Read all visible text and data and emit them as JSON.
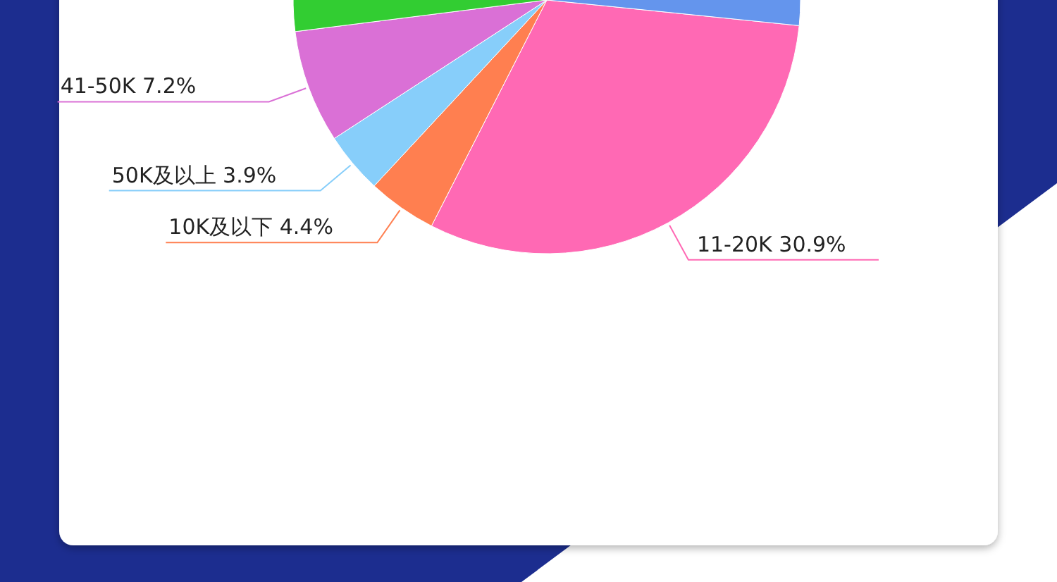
{
  "chart_data": {
    "type": "pie",
    "categories": [
      "11-20K",
      "10K及以下",
      "50K及以上",
      "41-50K",
      null,
      null
    ],
    "values": [
      30.9,
      4.4,
      3.9,
      7.2,
      26.8,
      26.8
    ],
    "colors": [
      "#ff69b4",
      "#ff7f50",
      "#87cefa",
      "#da70d6",
      "#32cd32",
      "#6495ed"
    ],
    "value_labels": [
      "30.9%",
      "4.4%",
      "3.9%",
      "7.2%",
      null,
      null
    ]
  }
}
